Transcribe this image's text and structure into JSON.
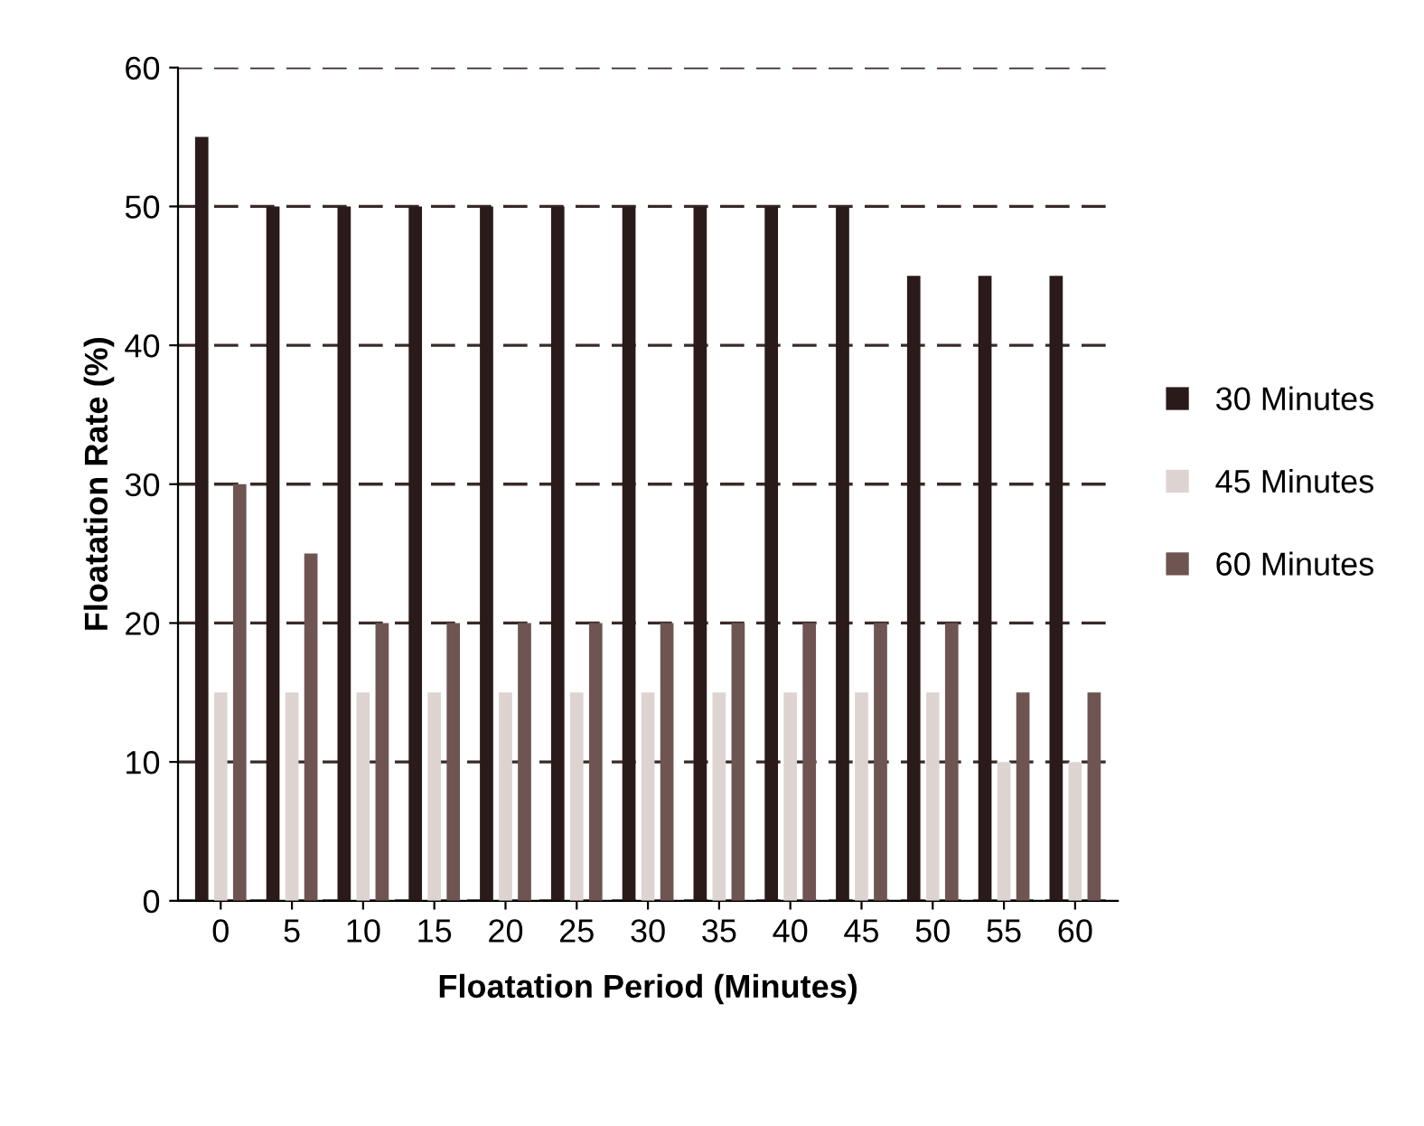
{
  "chart_data": {
    "type": "bar",
    "xlabel": "Floatation Period (Minutes)",
    "ylabel": "Floatation Rate (%)",
    "categories": [
      "0",
      "5",
      "10",
      "15",
      "20",
      "25",
      "30",
      "35",
      "40",
      "45",
      "50",
      "55",
      "60"
    ],
    "series": [
      {
        "name": "30 Minutes",
        "color": "#2a1a1a",
        "values": [
          55,
          50,
          50,
          50,
          50,
          50,
          50,
          50,
          50,
          50,
          45,
          45,
          45
        ]
      },
      {
        "name": "45 Minutes",
        "color": "#ddd4d2",
        "values": [
          15,
          15,
          15,
          15,
          15,
          15,
          15,
          15,
          15,
          15,
          15,
          10,
          10
        ]
      },
      {
        "name": "60 Minutes",
        "color": "#6e5552",
        "values": [
          30,
          25,
          20,
          20,
          20,
          20,
          20,
          20,
          20,
          20,
          20,
          15,
          15
        ]
      }
    ],
    "ylim": [
      0,
      60
    ],
    "yticks": [
      0,
      10,
      20,
      30,
      40,
      50,
      60
    ],
    "grid": "y",
    "legend": "right"
  }
}
